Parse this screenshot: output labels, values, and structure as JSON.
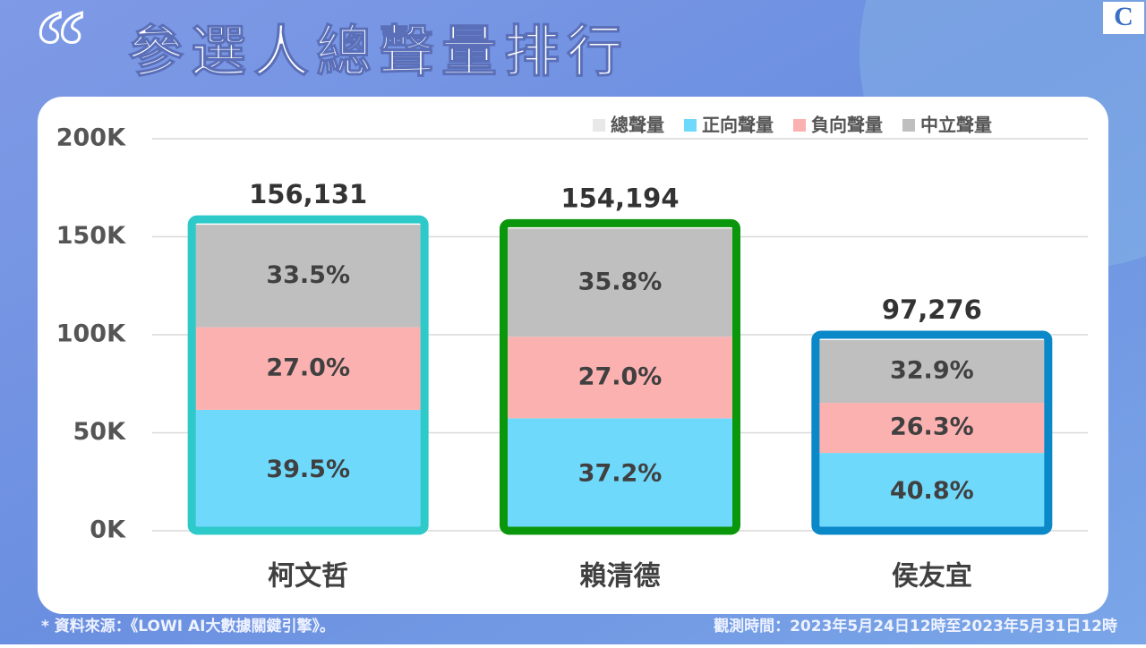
{
  "chart_data": {
    "type": "bar",
    "stacked": true,
    "title": "參選人總聲量排行",
    "logo": "C",
    "source": "* 資料來源：《LOWI AI大數據關鍵引擎》。",
    "period": "觀測時間：2023年5月24日12時至2023年5月31日12時",
    "categories": [
      "柯文哲",
      "賴清德",
      "侯友宜"
    ],
    "outline_colors": [
      "#2ec9c9",
      "#0b970b",
      "#0a88c8"
    ],
    "ylim": [
      0,
      200000
    ],
    "yticks": [
      {
        "value": 0,
        "label": "0K"
      },
      {
        "value": 50000,
        "label": "50K"
      },
      {
        "value": 100000,
        "label": "100K"
      },
      {
        "value": 150000,
        "label": "150K"
      },
      {
        "value": 200000,
        "label": "200K"
      }
    ],
    "grid": true,
    "legend": "top-right",
    "series": [
      {
        "name": "總聲量",
        "color": "#e8e8e8",
        "role": "total",
        "values": [
          156131,
          154194,
          97276
        ],
        "value_labels": [
          "156,131",
          "154,194",
          "97,276"
        ]
      },
      {
        "name": "正向聲量",
        "color": "#6fd9fc",
        "values": [
          39.5,
          37.2,
          40.8
        ],
        "value_labels": [
          "39.5%",
          "37.2%",
          "40.8%"
        ]
      },
      {
        "name": "負向聲量",
        "color": "#fcb1b1",
        "values": [
          27.0,
          27.0,
          26.3
        ],
        "value_labels": [
          "27.0%",
          "27.0%",
          "26.3%"
        ]
      },
      {
        "name": "中立聲量",
        "color": "#bfbfbf",
        "values": [
          33.5,
          35.8,
          32.9
        ],
        "value_labels": [
          "33.5%",
          "35.8%",
          "32.9%"
        ]
      }
    ]
  }
}
